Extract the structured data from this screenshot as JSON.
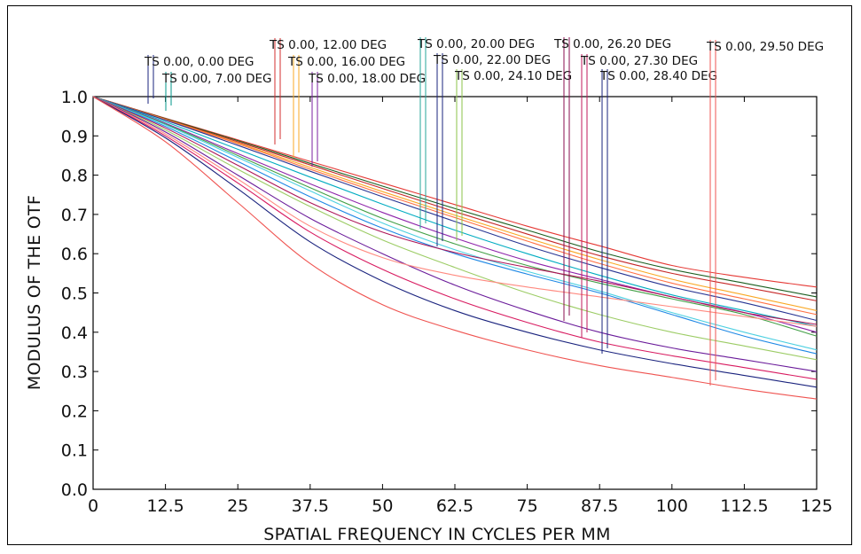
{
  "chart_data": {
    "type": "line",
    "title": "",
    "xlabel": "SPATIAL FREQUENCY IN CYCLES PER MM",
    "ylabel": "MODULUS OF THE OTF",
    "xlim": [
      0,
      125
    ],
    "ylim": [
      0.0,
      1.0
    ],
    "x_ticks": [
      "0",
      "12.5",
      "25",
      "37.5",
      "50",
      "62.5",
      "75",
      "87.5",
      "100",
      "112.5",
      "125"
    ],
    "y_ticks": [
      "0.0",
      "0.1",
      "0.2",
      "0.3",
      "0.4",
      "0.5",
      "0.6",
      "0.7",
      "0.8",
      "0.9",
      "1.0"
    ],
    "grid": false,
    "field_labels": [
      {
        "text": "TS 0.00, 0.00 DEG",
        "x": 10,
        "color": "#1a237e"
      },
      {
        "text": "TS 0.00, 7.00 DEG",
        "x": 12.8,
        "color": "#009688"
      },
      {
        "text": "TS 0.00, 12.00 DEG",
        "x": 32.5,
        "color": "#d32f2f"
      },
      {
        "text": "TS 0.00, 16.00 DEG",
        "x": 35,
        "color": "#f9a825"
      },
      {
        "text": "TS 0.00, 18.00 DEG",
        "x": 38,
        "color": "#7b1fa2"
      },
      {
        "text": "TS 0.00, 20.00 DEG",
        "x": 57,
        "color": "#26a69a"
      },
      {
        "text": "TS 0.00, 22.00 DEG",
        "x": 60,
        "color": "#1a237e"
      },
      {
        "text": "TS 0.00, 24.10 DEG",
        "x": 63,
        "color": "#8bc34a"
      },
      {
        "text": "TS 0.00, 26.20 DEG",
        "x": 81.5,
        "color": "#880e4f"
      },
      {
        "text": "TS 0.00, 27.30 DEG",
        "x": 85,
        "color": "#c2185b"
      },
      {
        "text": "TS 0.00, 28.40 DEG",
        "x": 88,
        "color": "#1a237e"
      },
      {
        "text": "TS 0.00, 29.50 DEG",
        "x": 107,
        "color": "#ef5350"
      }
    ],
    "x": [
      0,
      12.5,
      25,
      37.5,
      50,
      62.5,
      75,
      87.5,
      100,
      112.5,
      125
    ],
    "series": [
      {
        "color": "#e53935",
        "values": [
          1.0,
          0.945,
          0.89,
          0.835,
          0.78,
          0.725,
          0.67,
          0.62,
          0.57,
          0.54,
          0.515
        ]
      },
      {
        "color": "#1b5e20",
        "values": [
          1.0,
          0.944,
          0.888,
          0.83,
          0.772,
          0.715,
          0.66,
          0.605,
          0.56,
          0.525,
          0.49
        ]
      },
      {
        "color": "#c62828",
        "values": [
          1.0,
          0.943,
          0.885,
          0.826,
          0.766,
          0.707,
          0.65,
          0.595,
          0.55,
          0.515,
          0.48
        ]
      },
      {
        "color": "#f9a825",
        "values": [
          1.0,
          0.942,
          0.882,
          0.82,
          0.758,
          0.698,
          0.64,
          0.585,
          0.535,
          0.495,
          0.455
        ]
      },
      {
        "color": "#ff7043",
        "values": [
          1.0,
          0.941,
          0.88,
          0.815,
          0.752,
          0.692,
          0.632,
          0.575,
          0.525,
          0.485,
          0.445
        ]
      },
      {
        "color": "#283593",
        "values": [
          1.0,
          0.94,
          0.876,
          0.81,
          0.745,
          0.682,
          0.62,
          0.565,
          0.515,
          0.475,
          0.43
        ]
      },
      {
        "color": "#00acc1",
        "values": [
          1.0,
          0.936,
          0.866,
          0.795,
          0.726,
          0.66,
          0.6,
          0.545,
          0.495,
          0.455,
          0.415
        ]
      },
      {
        "color": "#8e24aa",
        "values": [
          1.0,
          0.932,
          0.855,
          0.778,
          0.705,
          0.64,
          0.582,
          0.535,
          0.49,
          0.45,
          0.4
        ]
      },
      {
        "color": "#43a047",
        "values": [
          1.0,
          0.93,
          0.85,
          0.768,
          0.69,
          0.625,
          0.57,
          0.525,
          0.485,
          0.445,
          0.39
        ]
      },
      {
        "color": "#4dd0e1",
        "values": [
          1.0,
          0.928,
          0.845,
          0.76,
          0.678,
          0.61,
          0.555,
          0.505,
          0.45,
          0.4,
          0.355
        ]
      },
      {
        "color": "#1e88e5",
        "values": [
          1.0,
          0.924,
          0.835,
          0.745,
          0.665,
          0.6,
          0.548,
          0.5,
          0.445,
          0.39,
          0.345
        ]
      },
      {
        "color": "#ad1457",
        "values": [
          1.0,
          0.92,
          0.825,
          0.73,
          0.655,
          0.603,
          0.565,
          0.53,
          0.49,
          0.45,
          0.42
        ]
      },
      {
        "color": "#9ccc65",
        "values": [
          1.0,
          0.915,
          0.815,
          0.72,
          0.635,
          0.565,
          0.5,
          0.445,
          0.4,
          0.365,
          0.33
        ]
      },
      {
        "color": "#6a1b9a",
        "values": [
          1.0,
          0.91,
          0.8,
          0.69,
          0.6,
          0.52,
          0.455,
          0.4,
          0.36,
          0.33,
          0.3
        ]
      },
      {
        "color": "#ff8a80",
        "values": [
          1.0,
          0.905,
          0.79,
          0.67,
          0.59,
          0.545,
          0.515,
          0.49,
          0.465,
          0.44,
          0.415
        ]
      },
      {
        "color": "#d81b60",
        "values": [
          1.0,
          0.9,
          0.78,
          0.655,
          0.56,
          0.485,
          0.425,
          0.375,
          0.34,
          0.31,
          0.28
        ]
      },
      {
        "color": "#1a237e",
        "values": [
          1.0,
          0.895,
          0.765,
          0.63,
          0.53,
          0.455,
          0.4,
          0.355,
          0.32,
          0.29,
          0.26
        ]
      },
      {
        "color": "#ef5350",
        "values": [
          1.0,
          0.885,
          0.73,
          0.575,
          0.47,
          0.405,
          0.355,
          0.315,
          0.285,
          0.255,
          0.23
        ]
      }
    ]
  }
}
